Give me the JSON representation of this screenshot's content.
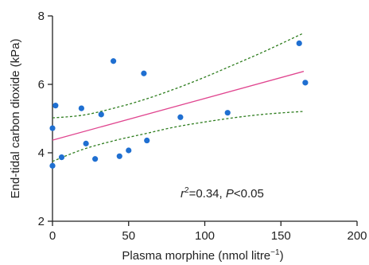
{
  "chart_data": {
    "type": "scatter",
    "xlabel": "Plasma morphine (nmol litre",
    "xlabel_sup": "−1",
    "xlabel_close": ")",
    "ylabel": "End-tidal carbon dioxide (kPa)",
    "xlim": [
      0,
      200
    ],
    "ylim": [
      2,
      8
    ],
    "x_ticks": [
      0,
      50,
      100,
      150,
      200
    ],
    "y_ticks": [
      2,
      4,
      6,
      8
    ],
    "x_tick_labels": [
      "0",
      "50",
      "100",
      "150",
      "200"
    ],
    "y_tick_labels": [
      "2",
      "4",
      "6",
      "8"
    ],
    "grid": false,
    "points": [
      {
        "x": 0,
        "y": 3.62
      },
      {
        "x": 0,
        "y": 4.72
      },
      {
        "x": 2,
        "y": 5.38
      },
      {
        "x": 6,
        "y": 3.87
      },
      {
        "x": 19,
        "y": 5.3
      },
      {
        "x": 22,
        "y": 4.27
      },
      {
        "x": 28,
        "y": 3.82
      },
      {
        "x": 32,
        "y": 5.12
      },
      {
        "x": 40,
        "y": 6.68
      },
      {
        "x": 44,
        "y": 3.9
      },
      {
        "x": 50,
        "y": 4.07
      },
      {
        "x": 60,
        "y": 6.32
      },
      {
        "x": 62,
        "y": 4.36
      },
      {
        "x": 84,
        "y": 5.04
      },
      {
        "x": 115,
        "y": 5.17
      },
      {
        "x": 162,
        "y": 7.2
      },
      {
        "x": 166,
        "y": 6.05
      }
    ],
    "regression_line": {
      "x": [
        0,
        165
      ],
      "y": [
        4.37,
        6.38
      ]
    },
    "ci_upper": {
      "x": [
        0,
        20,
        40,
        60,
        80,
        100,
        120,
        140,
        165
      ],
      "y": [
        5.02,
        5.1,
        5.3,
        5.55,
        5.86,
        6.21,
        6.59,
        6.98,
        7.5
      ]
    },
    "ci_lower": {
      "x": [
        0,
        20,
        40,
        60,
        80,
        100,
        120,
        140,
        165
      ],
      "y": [
        3.75,
        4.1,
        4.35,
        4.55,
        4.75,
        4.9,
        5.03,
        5.13,
        5.21
      ]
    },
    "colors": {
      "points": "#1f6fd1",
      "regression": "#e0458f",
      "ci": "#2e7d1e",
      "axis": "#222222"
    },
    "annotation": {
      "r_symbol": "r",
      "r_power": "2",
      "r_value": "=0.34, ",
      "p_symbol": "P",
      "p_value": "<0.05"
    }
  }
}
